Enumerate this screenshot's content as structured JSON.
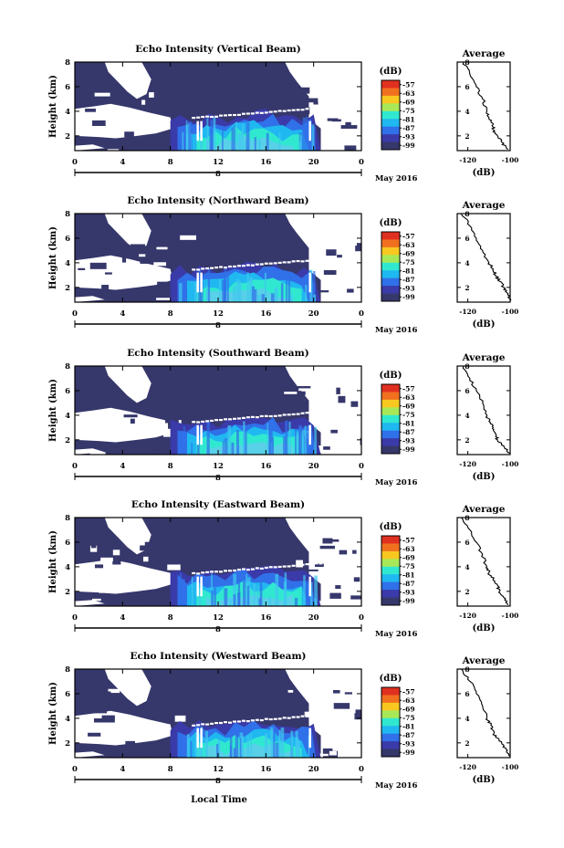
{
  "figure": {
    "x_axis_label": "Local Time",
    "date_label": "May 2016",
    "date_day_marker": "8",
    "colorbar_unit": "(dB)",
    "height_label": "Height (km)",
    "average_title": "Average",
    "average_xlabel": "(dB)"
  },
  "chart_data": [
    {
      "type": "heatmap",
      "title": "Echo Intensity (Vertical Beam)",
      "ylabel": "Height (km)",
      "xlabel": "Local Time",
      "x_ticks": [
        "0",
        "4",
        "8",
        "12",
        "16",
        "20",
        "0"
      ],
      "xlim_hours": [
        0,
        24
      ],
      "y_ticks": [
        "2",
        "4",
        "6",
        "8"
      ],
      "ylim_km": [
        0.8,
        8
      ],
      "date": "May 2016",
      "day": "8",
      "colorbar": {
        "unit": "(dB)",
        "ticks": [
          "-57",
          "-63",
          "-69",
          "-75",
          "-81",
          "-87",
          "-93",
          "-99"
        ],
        "colors": [
          "#e03020",
          "#f07020",
          "#f8c820",
          "#a8e858",
          "#30e8d0",
          "#20b8f0",
          "#3070e8",
          "#3a3aa8",
          "#36376b"
        ]
      },
      "average": {
        "title": "Average",
        "xlabel": "(dB)",
        "x_ticks": [
          "-120",
          "-100"
        ],
        "xlim": [
          -125,
          -100
        ],
        "y_ticks": [
          "2",
          "4",
          "6",
          "8"
        ],
        "height_km": [
          0.9,
          1.5,
          2,
          2.5,
          3,
          3.5,
          4,
          5,
          6,
          7,
          8
        ],
        "value_db": [
          -101,
          -104,
          -106,
          -108,
          -108,
          -110,
          -111,
          -113,
          -116,
          -119,
          -122
        ]
      }
    },
    {
      "type": "heatmap",
      "title": "Echo Intensity (Northward Beam)",
      "ylabel": "Height (km)",
      "xlabel": "Local Time",
      "x_ticks": [
        "0",
        "4",
        "8",
        "12",
        "16",
        "20",
        "0"
      ],
      "xlim_hours": [
        0,
        24
      ],
      "y_ticks": [
        "2",
        "4",
        "6",
        "8"
      ],
      "ylim_km": [
        0.8,
        8
      ],
      "date": "May 2016",
      "day": "8",
      "colorbar": {
        "unit": "(dB)",
        "ticks": [
          "-57",
          "-63",
          "-69",
          "-75",
          "-81",
          "-87",
          "-93",
          "-99"
        ],
        "colors": [
          "#e03020",
          "#f07020",
          "#f8c820",
          "#a8e858",
          "#30e8d0",
          "#20b8f0",
          "#3070e8",
          "#3a3aa8",
          "#36376b"
        ]
      },
      "average": {
        "title": "Average",
        "xlabel": "(dB)",
        "x_ticks": [
          "-120",
          "-100"
        ],
        "xlim": [
          -125,
          -100
        ],
        "y_ticks": [
          "2",
          "4",
          "6",
          "8"
        ],
        "height_km": [
          0.9,
          1.5,
          2,
          2.5,
          3,
          3.5,
          4,
          5,
          6,
          7,
          8
        ],
        "value_db": [
          -100,
          -101,
          -103,
          -105,
          -107,
          -108,
          -110,
          -113,
          -116,
          -119,
          -123
        ]
      }
    },
    {
      "type": "heatmap",
      "title": "Echo Intensity (Southward Beam)",
      "ylabel": "Height (km)",
      "xlabel": "Local Time",
      "x_ticks": [
        "0",
        "4",
        "8",
        "12",
        "16",
        "20",
        "0"
      ],
      "xlim_hours": [
        0,
        24
      ],
      "y_ticks": [
        "2",
        "4",
        "6",
        "8"
      ],
      "ylim_km": [
        0.8,
        8
      ],
      "date": "May 2016",
      "day": "8",
      "colorbar": {
        "unit": "(dB)",
        "ticks": [
          "-57",
          "-63",
          "-69",
          "-75",
          "-81",
          "-87",
          "-93",
          "-99"
        ],
        "colors": [
          "#e03020",
          "#f07020",
          "#f8c820",
          "#a8e858",
          "#30e8d0",
          "#20b8f0",
          "#3070e8",
          "#3a3aa8",
          "#36376b"
        ]
      },
      "average": {
        "title": "Average",
        "xlabel": "(dB)",
        "x_ticks": [
          "-120",
          "-100"
        ],
        "xlim": [
          -125,
          -100
        ],
        "y_ticks": [
          "2",
          "4",
          "6",
          "8"
        ],
        "height_km": [
          0.9,
          1.5,
          2,
          2.5,
          3,
          3.5,
          4,
          5,
          6,
          7,
          8
        ],
        "value_db": [
          -100,
          -103,
          -106,
          -107,
          -108,
          -110,
          -111,
          -113,
          -116,
          -119,
          -122
        ]
      }
    },
    {
      "type": "heatmap",
      "title": "Echo Intensity (Eastward Beam)",
      "ylabel": "Height (km)",
      "xlabel": "Local Time",
      "x_ticks": [
        "0",
        "4",
        "8",
        "12",
        "16",
        "20",
        "0"
      ],
      "xlim_hours": [
        0,
        24
      ],
      "y_ticks": [
        "2",
        "4",
        "6",
        "8"
      ],
      "ylim_km": [
        0.8,
        8
      ],
      "date": "May 2016",
      "day": "8",
      "colorbar": {
        "unit": "(dB)",
        "ticks": [
          "-57",
          "-63",
          "-69",
          "-75",
          "-81",
          "-87",
          "-93",
          "-99"
        ],
        "colors": [
          "#e03020",
          "#f07020",
          "#f8c820",
          "#a8e858",
          "#30e8d0",
          "#20b8f0",
          "#3070e8",
          "#3a3aa8",
          "#36376b"
        ]
      },
      "average": {
        "title": "Average",
        "xlabel": "(dB)",
        "x_ticks": [
          "-120",
          "-100"
        ],
        "xlim": [
          -125,
          -100
        ],
        "y_ticks": [
          "2",
          "4",
          "6",
          "8"
        ],
        "height_km": [
          0.9,
          1.5,
          2,
          2.5,
          3,
          3.5,
          4,
          5,
          6,
          7,
          8
        ],
        "value_db": [
          -101,
          -103,
          -105,
          -106,
          -108,
          -110,
          -111,
          -113,
          -116,
          -119,
          -123
        ]
      }
    },
    {
      "type": "heatmap",
      "title": "Echo Intensity (Westward Beam)",
      "ylabel": "Height (km)",
      "xlabel": "Local Time",
      "x_ticks": [
        "0",
        "4",
        "8",
        "12",
        "16",
        "20",
        "0"
      ],
      "xlim_hours": [
        0,
        24
      ],
      "y_ticks": [
        "2",
        "4",
        "6",
        "8"
      ],
      "ylim_km": [
        0.8,
        8
      ],
      "date": "May 2016",
      "day": "8",
      "colorbar": {
        "unit": "(dB)",
        "ticks": [
          "-57",
          "-63",
          "-69",
          "-75",
          "-81",
          "-87",
          "-93",
          "-99"
        ],
        "colors": [
          "#e03020",
          "#f07020",
          "#f8c820",
          "#a8e858",
          "#30e8d0",
          "#20b8f0",
          "#3070e8",
          "#3a3aa8",
          "#36376b"
        ]
      },
      "average": {
        "title": "Average",
        "xlabel": "(dB)",
        "x_ticks": [
          "-120",
          "-100"
        ],
        "xlim": [
          -125,
          -100
        ],
        "y_ticks": [
          "2",
          "4",
          "6",
          "8"
        ],
        "height_km": [
          0.9,
          1.5,
          2,
          2.5,
          3,
          3.5,
          4,
          5,
          6,
          7,
          8
        ],
        "value_db": [
          -100,
          -102,
          -104,
          -107,
          -108,
          -109,
          -111,
          -113,
          -116,
          -119,
          -123
        ]
      }
    }
  ]
}
